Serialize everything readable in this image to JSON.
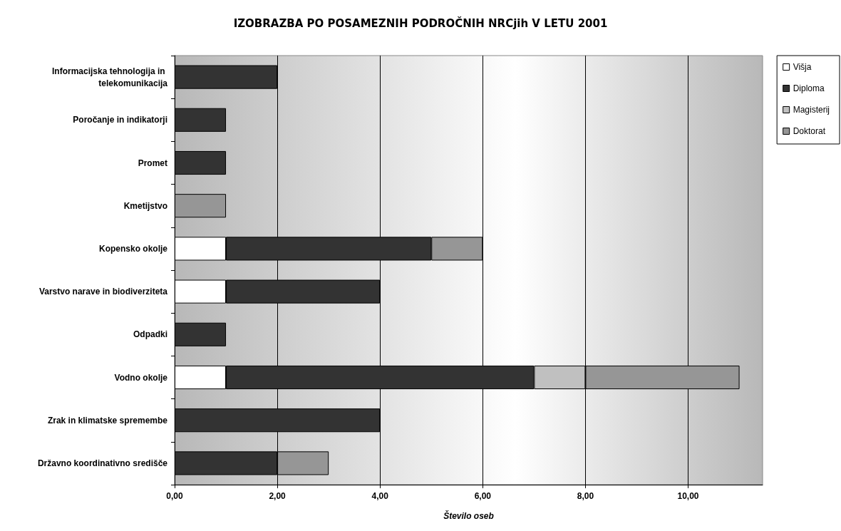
{
  "chart_data": {
    "type": "bar",
    "orientation": "horizontal",
    "stacked": true,
    "title": "IZOBRAZBA PO POSAMEZNIH PODROČNIH NRCjih V LETU 2001",
    "xlabel": "Število oseb",
    "categories": [
      "Informacijska tehnologija in telekomunikacija",
      "Poročanje in indikatorji",
      "Promet",
      "Kmetijstvo",
      "Kopensko okolje",
      "Varstvo narave in biodiverziteta",
      "Odpadki",
      "Vodno okolje",
      "Zrak in klimatske spremembe",
      "Državno koordinativno središče"
    ],
    "series": [
      {
        "name": "Višja",
        "color": "#ffffff",
        "values": [
          null,
          null,
          null,
          null,
          1,
          1,
          null,
          1,
          null,
          null
        ]
      },
      {
        "name": "Diploma",
        "color": "#333333",
        "values": [
          2,
          1,
          1,
          null,
          4,
          3,
          1,
          6,
          4,
          2
        ]
      },
      {
        "name": "Magisterij",
        "color": "#c0c0c0",
        "values": [
          null,
          null,
          null,
          null,
          null,
          null,
          null,
          1,
          null,
          null
        ]
      },
      {
        "name": "Doktorat",
        "color": "#969696",
        "values": [
          null,
          null,
          null,
          1,
          1,
          null,
          null,
          3,
          null,
          1
        ]
      }
    ],
    "xlim": [
      0,
      11.45
    ],
    "xticks": [
      {
        "value": 0,
        "label": "0,00"
      },
      {
        "value": 2,
        "label": "2,00"
      },
      {
        "value": 4,
        "label": "4,00"
      },
      {
        "value": 6,
        "label": "6,00"
      },
      {
        "value": 8,
        "label": "8,00"
      },
      {
        "value": 10,
        "label": "10,00"
      }
    ],
    "grid": "x",
    "legend": "top right"
  }
}
